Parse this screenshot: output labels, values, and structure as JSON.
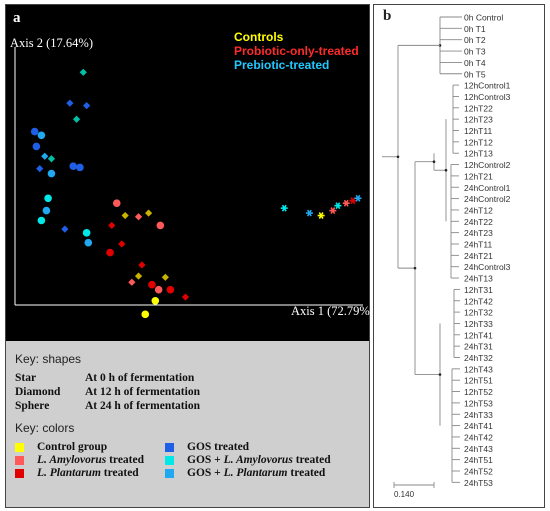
{
  "panel_a": {
    "label": "a",
    "key_shapes": {
      "title": "Key: shapes",
      "rows": [
        {
          "name": "Star",
          "desc": "At 0 h of fermentation"
        },
        {
          "name": "Diamond",
          "desc": "At 12 h of fermentation"
        },
        {
          "name": "Sphere",
          "desc": "At 24 h of fermentation"
        }
      ]
    },
    "key_colors": {
      "title": "Key: colors",
      "left": [
        {
          "color": "#ffff00",
          "parts": [
            "Control group"
          ]
        },
        {
          "color": "#ff5a5a",
          "parts": [
            "L. Amylovorus",
            " treated"
          ]
        },
        {
          "color": "#e00000",
          "parts": [
            "L. Plantarum",
            " treated"
          ]
        }
      ],
      "right": [
        {
          "color": "#1f5fe8",
          "parts": [
            "GOS treated"
          ]
        },
        {
          "color": "#00e8e8",
          "parts": [
            "GOS + ",
            "L. Amylovorus",
            " treated"
          ]
        },
        {
          "color": "#20a8f0",
          "parts": [
            "GOS + ",
            "L. Plantarum",
            " treated"
          ]
        }
      ]
    }
  },
  "panel_b": {
    "label": "b",
    "scale_label": "0.140",
    "leaves": [
      "0h Control",
      "0h T1",
      "0h T2",
      "0h T3",
      "0h T4",
      "0h T5",
      "12hControl1",
      "12hControl3",
      "12hT22",
      "12hT23",
      "12hT11",
      "12hT12",
      "12hT13",
      "12hControl2",
      "12hT21",
      "24hControl1",
      "24hControl2",
      "24hT12",
      "24hT22",
      "24hT23",
      "24hT11",
      "24hT21",
      "24hControl3",
      "24hT13",
      "12hT31",
      "12hT42",
      "12hT32",
      "12hT33",
      "12hT41",
      "24hT31",
      "24hT32",
      "12hT43",
      "12hT51",
      "12hT52",
      "12hT53",
      "24hT33",
      "24hT41",
      "24hT42",
      "24hT43",
      "24hT51",
      "24hT52",
      "24hT53"
    ]
  },
  "chart_data": {
    "type": "scatter",
    "title": "",
    "xlabel": "Axis 1 (72.79%)",
    "ylabel": "Axis 2 (17.64%)",
    "xlim": [
      0,
      100
    ],
    "ylim": [
      0,
      100
    ],
    "grid": false,
    "legend_placement": "top-right",
    "legend": [
      {
        "name": "Controls",
        "color": "#ffff00"
      },
      {
        "name": "Probiotic-only-treated",
        "color": "#ff2a2a"
      },
      {
        "name": "Prebiotic-treated",
        "color": "#20c8ff"
      }
    ],
    "shape_key": {
      "star": "0 h",
      "diamond": "12 h",
      "sphere": "24 h"
    },
    "points": [
      {
        "x": 76.5,
        "y": 38,
        "shape": "star",
        "color": "#00e8e8"
      },
      {
        "x": 84,
        "y": 36,
        "shape": "star",
        "color": "#20a8f0"
      },
      {
        "x": 87.5,
        "y": 35,
        "shape": "star",
        "color": "#ffff00"
      },
      {
        "x": 91,
        "y": 37,
        "shape": "star",
        "color": "#ff5a5a"
      },
      {
        "x": 92.5,
        "y": 39,
        "shape": "star",
        "color": "#00e8e8"
      },
      {
        "x": 95,
        "y": 40,
        "shape": "star",
        "color": "#ff5a5a"
      },
      {
        "x": 97,
        "y": 41,
        "shape": "star",
        "color": "#e00000"
      },
      {
        "x": 98.5,
        "y": 42,
        "shape": "star",
        "color": "#20a8f0"
      },
      {
        "x": 16.5,
        "y": 93,
        "shape": "diamond",
        "color": "#00c0a8"
      },
      {
        "x": 12.5,
        "y": 80.5,
        "shape": "diamond",
        "color": "#1f5fe8"
      },
      {
        "x": 17.5,
        "y": 79.5,
        "shape": "diamond",
        "color": "#1f5fe8"
      },
      {
        "x": 14.5,
        "y": 74,
        "shape": "diamond",
        "color": "#00c0a8"
      },
      {
        "x": 2,
        "y": 69,
        "shape": "sphere",
        "color": "#1f5fe8"
      },
      {
        "x": 4,
        "y": 67.5,
        "shape": "sphere",
        "color": "#20a8f0"
      },
      {
        "x": 2.5,
        "y": 63,
        "shape": "sphere",
        "color": "#1f5fe8"
      },
      {
        "x": 5,
        "y": 59,
        "shape": "diamond",
        "color": "#20a8f0"
      },
      {
        "x": 7,
        "y": 58,
        "shape": "diamond",
        "color": "#00c0a8"
      },
      {
        "x": 13.5,
        "y": 55,
        "shape": "sphere",
        "color": "#1f5fe8"
      },
      {
        "x": 15.5,
        "y": 54.5,
        "shape": "sphere",
        "color": "#1f5fe8"
      },
      {
        "x": 3.5,
        "y": 54,
        "shape": "diamond",
        "color": "#1f5fe8"
      },
      {
        "x": 7,
        "y": 52,
        "shape": "sphere",
        "color": "#20a8f0"
      },
      {
        "x": 6,
        "y": 42,
        "shape": "sphere",
        "color": "#00e8e8"
      },
      {
        "x": 5.5,
        "y": 37,
        "shape": "sphere",
        "color": "#20a8f0"
      },
      {
        "x": 4,
        "y": 33,
        "shape": "sphere",
        "color": "#00e8e8"
      },
      {
        "x": 11,
        "y": 29.5,
        "shape": "diamond",
        "color": "#1f5fe8"
      },
      {
        "x": 17.5,
        "y": 28,
        "shape": "sphere",
        "color": "#00e8e8"
      },
      {
        "x": 18,
        "y": 24,
        "shape": "sphere",
        "color": "#20a8f0"
      },
      {
        "x": 26.5,
        "y": 40,
        "shape": "sphere",
        "color": "#ff5a5a"
      },
      {
        "x": 29,
        "y": 35,
        "shape": "diamond",
        "color": "#c8b400"
      },
      {
        "x": 33,
        "y": 34.5,
        "shape": "diamond",
        "color": "#ff5a5a"
      },
      {
        "x": 36,
        "y": 36,
        "shape": "diamond",
        "color": "#c8b400"
      },
      {
        "x": 39.5,
        "y": 31,
        "shape": "sphere",
        "color": "#ff5a5a"
      },
      {
        "x": 25,
        "y": 31,
        "shape": "diamond",
        "color": "#e00000"
      },
      {
        "x": 28,
        "y": 23.5,
        "shape": "diamond",
        "color": "#e00000"
      },
      {
        "x": 24.5,
        "y": 20,
        "shape": "sphere",
        "color": "#e00000"
      },
      {
        "x": 34,
        "y": 15,
        "shape": "diamond",
        "color": "#e00000"
      },
      {
        "x": 33,
        "y": 10.5,
        "shape": "diamond",
        "color": "#c8b400"
      },
      {
        "x": 41,
        "y": 10,
        "shape": "diamond",
        "color": "#c8b400"
      },
      {
        "x": 31,
        "y": 8,
        "shape": "diamond",
        "color": "#ff5a5a"
      },
      {
        "x": 37,
        "y": 7,
        "shape": "sphere",
        "color": "#e00000"
      },
      {
        "x": 39,
        "y": 5,
        "shape": "sphere",
        "color": "#ff5a5a"
      },
      {
        "x": 42.5,
        "y": 5,
        "shape": "sphere",
        "color": "#e00000"
      },
      {
        "x": 47,
        "y": 2,
        "shape": "diamond",
        "color": "#e00000"
      },
      {
        "x": 38,
        "y": 0.5,
        "shape": "sphere",
        "color": "#ffff00"
      },
      {
        "x": 35,
        "y": -5,
        "shape": "sphere",
        "color": "#ffff00"
      }
    ]
  }
}
